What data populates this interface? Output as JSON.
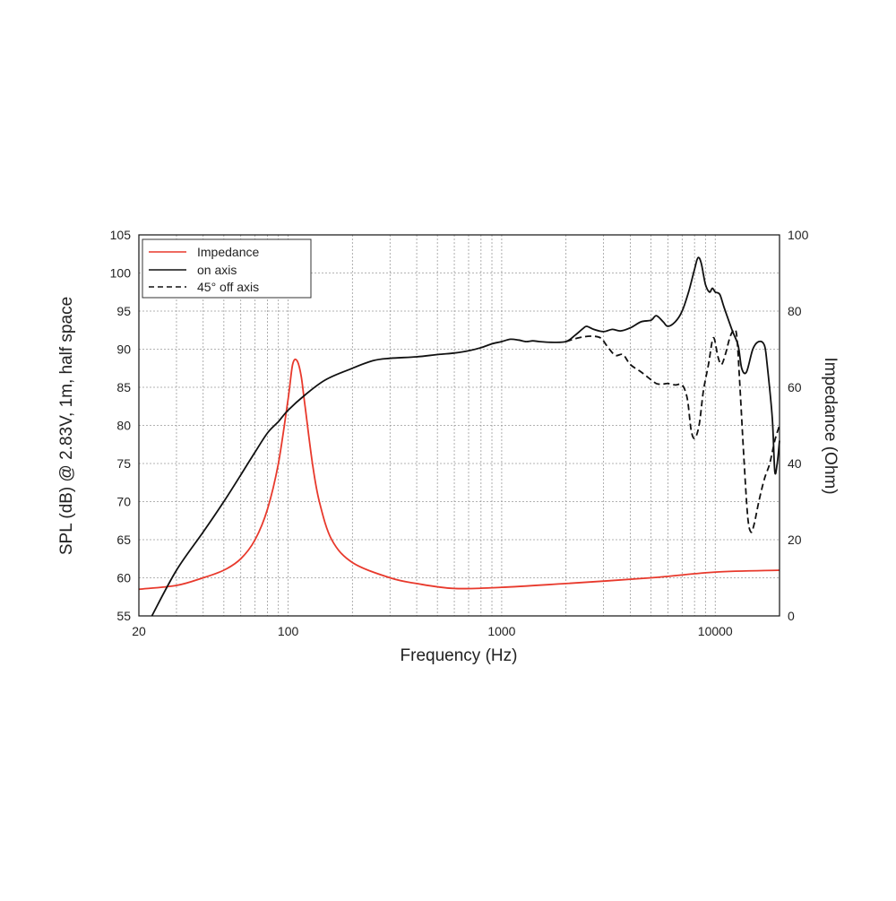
{
  "chart_data": {
    "type": "line",
    "title": "",
    "xlabel": "Frequency (Hz)",
    "ylabel": "SPL (dB) @ 2.83V, 1m, half space",
    "y2label": "Impedance (Ohm)",
    "x_scale": "log",
    "xlim": [
      20,
      20000
    ],
    "ylim": [
      55,
      105
    ],
    "y2lim": [
      0,
      100
    ],
    "x_ticks": [
      20,
      100,
      1000,
      10000
    ],
    "x_tick_labels": [
      "20",
      "100",
      "1000",
      "10000"
    ],
    "y_ticks": [
      55,
      60,
      65,
      70,
      75,
      80,
      85,
      90,
      95,
      100,
      105
    ],
    "y_tick_labels": [
      "55",
      "60",
      "65",
      "70",
      "75",
      "80",
      "85",
      "90",
      "95",
      "100",
      "105"
    ],
    "y2_ticks": [
      0,
      20,
      40,
      60,
      80,
      100
    ],
    "y2_tick_labels": [
      "0",
      "20",
      "40",
      "60",
      "80",
      "100"
    ],
    "grid": true,
    "legend_position": "top-left",
    "series": [
      {
        "name": "Impedance",
        "axis": "right",
        "color": "#e8392c",
        "dash": "solid",
        "points": [
          [
            20,
            7
          ],
          [
            30,
            8
          ],
          [
            40,
            10
          ],
          [
            50,
            12
          ],
          [
            60,
            15
          ],
          [
            70,
            20
          ],
          [
            80,
            28
          ],
          [
            90,
            40
          ],
          [
            100,
            57
          ],
          [
            105,
            66
          ],
          [
            110,
            67
          ],
          [
            115,
            63
          ],
          [
            120,
            55
          ],
          [
            130,
            40
          ],
          [
            140,
            30
          ],
          [
            160,
            20
          ],
          [
            200,
            14
          ],
          [
            300,
            10
          ],
          [
            400,
            8.5
          ],
          [
            600,
            7.2
          ],
          [
            1000,
            7.5
          ],
          [
            2000,
            8.5
          ],
          [
            5000,
            10
          ],
          [
            10000,
            11.5
          ],
          [
            20000,
            12
          ]
        ]
      },
      {
        "name": "on axis",
        "axis": "left",
        "color": "#111111",
        "dash": "solid",
        "points": [
          [
            23,
            55
          ],
          [
            30,
            61
          ],
          [
            40,
            66
          ],
          [
            50,
            70
          ],
          [
            60,
            73.5
          ],
          [
            70,
            76.5
          ],
          [
            80,
            79
          ],
          [
            90,
            80.5
          ],
          [
            100,
            82
          ],
          [
            120,
            84
          ],
          [
            150,
            86
          ],
          [
            200,
            87.5
          ],
          [
            250,
            88.5
          ],
          [
            300,
            88.8
          ],
          [
            400,
            89
          ],
          [
            500,
            89.3
          ],
          [
            600,
            89.5
          ],
          [
            700,
            89.8
          ],
          [
            800,
            90.2
          ],
          [
            900,
            90.7
          ],
          [
            1000,
            91
          ],
          [
            1100,
            91.3
          ],
          [
            1200,
            91.2
          ],
          [
            1300,
            91
          ],
          [
            1400,
            91.1
          ],
          [
            1500,
            91
          ],
          [
            1700,
            90.9
          ],
          [
            2000,
            91
          ],
          [
            2200,
            91.8
          ],
          [
            2400,
            92.7
          ],
          [
            2500,
            93
          ],
          [
            2700,
            92.6
          ],
          [
            3000,
            92.3
          ],
          [
            3300,
            92.6
          ],
          [
            3600,
            92.4
          ],
          [
            4000,
            92.8
          ],
          [
            4500,
            93.6
          ],
          [
            5000,
            93.8
          ],
          [
            5300,
            94.4
          ],
          [
            5700,
            93.6
          ],
          [
            6000,
            93
          ],
          [
            6500,
            93.6
          ],
          [
            7000,
            95
          ],
          [
            7500,
            97.5
          ],
          [
            8000,
            100.5
          ],
          [
            8300,
            102
          ],
          [
            8600,
            101.3
          ],
          [
            9000,
            98.5
          ],
          [
            9400,
            97.5
          ],
          [
            9700,
            98
          ],
          [
            10000,
            97.5
          ],
          [
            10500,
            97.2
          ],
          [
            11000,
            95.5
          ],
          [
            12000,
            92.5
          ],
          [
            12800,
            90.5
          ],
          [
            13300,
            87.5
          ],
          [
            14000,
            87
          ],
          [
            15000,
            90
          ],
          [
            16000,
            91
          ],
          [
            17000,
            90.5
          ],
          [
            17500,
            88
          ],
          [
            18500,
            81
          ],
          [
            19000,
            74
          ],
          [
            19500,
            75
          ],
          [
            20000,
            78
          ]
        ]
      },
      {
        "name": "45° off axis",
        "axis": "left",
        "color": "#111111",
        "dash": "dashed",
        "points": [
          [
            2000,
            91
          ],
          [
            2300,
            91.5
          ],
          [
            2600,
            91.7
          ],
          [
            2900,
            91.5
          ],
          [
            3100,
            90.5
          ],
          [
            3400,
            89.2
          ],
          [
            3700,
            89.3
          ],
          [
            4000,
            88
          ],
          [
            4500,
            87
          ],
          [
            5000,
            86
          ],
          [
            5300,
            85.5
          ],
          [
            5600,
            85.4
          ],
          [
            6000,
            85.5
          ],
          [
            6500,
            85.3
          ],
          [
            7000,
            85.3
          ],
          [
            7400,
            83.5
          ],
          [
            7700,
            79.5
          ],
          [
            8000,
            78.3
          ],
          [
            8400,
            80
          ],
          [
            8800,
            84.5
          ],
          [
            9300,
            88
          ],
          [
            9800,
            91.5
          ],
          [
            10300,
            89
          ],
          [
            10700,
            88
          ],
          [
            11200,
            89.5
          ],
          [
            11700,
            91.5
          ],
          [
            12200,
            92.5
          ],
          [
            12600,
            91.8
          ],
          [
            13000,
            86
          ],
          [
            13600,
            76
          ],
          [
            14200,
            68
          ],
          [
            14700,
            66
          ],
          [
            15200,
            67
          ],
          [
            16000,
            70
          ],
          [
            17000,
            73
          ],
          [
            18000,
            75
          ],
          [
            19000,
            78
          ],
          [
            20000,
            80
          ]
        ]
      }
    ]
  }
}
